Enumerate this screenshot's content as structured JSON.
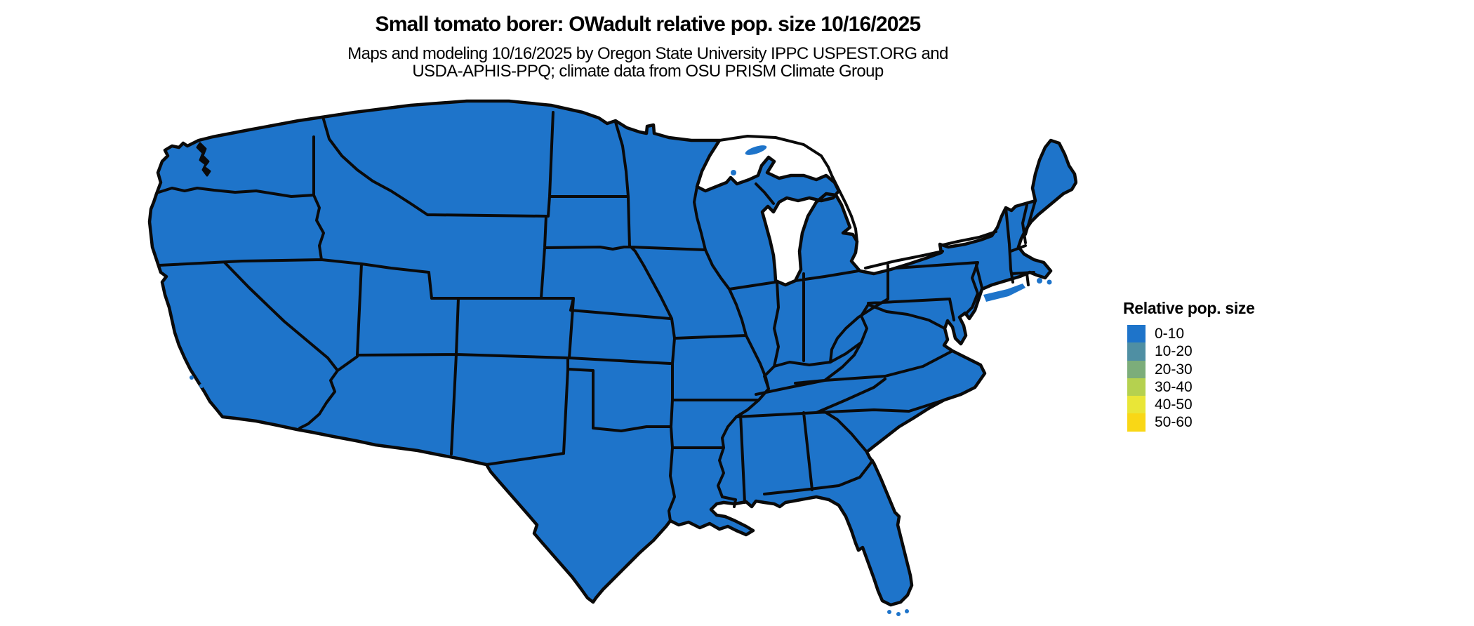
{
  "header": {
    "title": "Small tomato borer: OWadult relative pop. size 10/16/2025",
    "subtitle_line1": "Maps and modeling 10/16/2025 by Oregon State University IPPC USPEST.ORG and",
    "subtitle_line2": "USDA-APHIS-PPQ; climate data from OSU PRISM Climate Group"
  },
  "map": {
    "region": "Continental United States",
    "date_shown": "10/16/2025",
    "fill_category_all_states": "0-10",
    "land_fill_color": "#1e74ca",
    "border_color": "#0a0a0a",
    "water_background_color": "#ffffff"
  },
  "legend": {
    "title": "Relative pop. size",
    "items": [
      {
        "label": "0-10",
        "color": "#1e74ca"
      },
      {
        "label": "10-20",
        "color": "#4f8fa3"
      },
      {
        "label": "20-30",
        "color": "#7cad7a"
      },
      {
        "label": "30-40",
        "color": "#b5d14f"
      },
      {
        "label": "40-50",
        "color": "#e9e637"
      },
      {
        "label": "50-60",
        "color": "#f9d716"
      }
    ]
  },
  "chart_data": {
    "type": "heatmap",
    "title": "Small tomato borer: OWadult relative pop. size 10/16/2025",
    "subtitle": "Maps and modeling 10/16/2025 by Oregon State University IPPC USPEST.ORG and USDA-APHIS-PPQ; climate data from OSU PRISM Climate Group",
    "legend_title": "Relative pop. size",
    "bins": [
      "0-10",
      "10-20",
      "20-30",
      "30-40",
      "40-50",
      "50-60"
    ],
    "bin_colors": [
      "#1e74ca",
      "#4f8fa3",
      "#7cad7a",
      "#b5d14f",
      "#e9e637",
      "#f9d716"
    ],
    "values_note": "Entire continental US shown in lowest bin 0-10",
    "series": [
      {
        "name": "Relative pop. size (all mapped area)",
        "values": [
          "0-10"
        ]
      }
    ],
    "legend_position": "right"
  }
}
